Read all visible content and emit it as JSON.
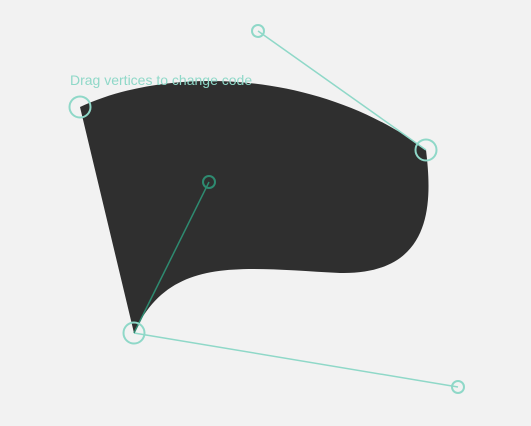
{
  "hint": "Drag vertices to change code",
  "colors": {
    "background": "#f2f2f2",
    "shape_fill": "#2f2f2f",
    "handle_line_light": "#8fd8c8",
    "handle_line_dark": "#2e8a70",
    "vertex_stroke": "#8fd8c8",
    "vertex_stroke_dark": "#2e8a70"
  },
  "icons": {
    "vertex": "circle-handle-icon",
    "control_point": "circle-control-icon"
  }
}
